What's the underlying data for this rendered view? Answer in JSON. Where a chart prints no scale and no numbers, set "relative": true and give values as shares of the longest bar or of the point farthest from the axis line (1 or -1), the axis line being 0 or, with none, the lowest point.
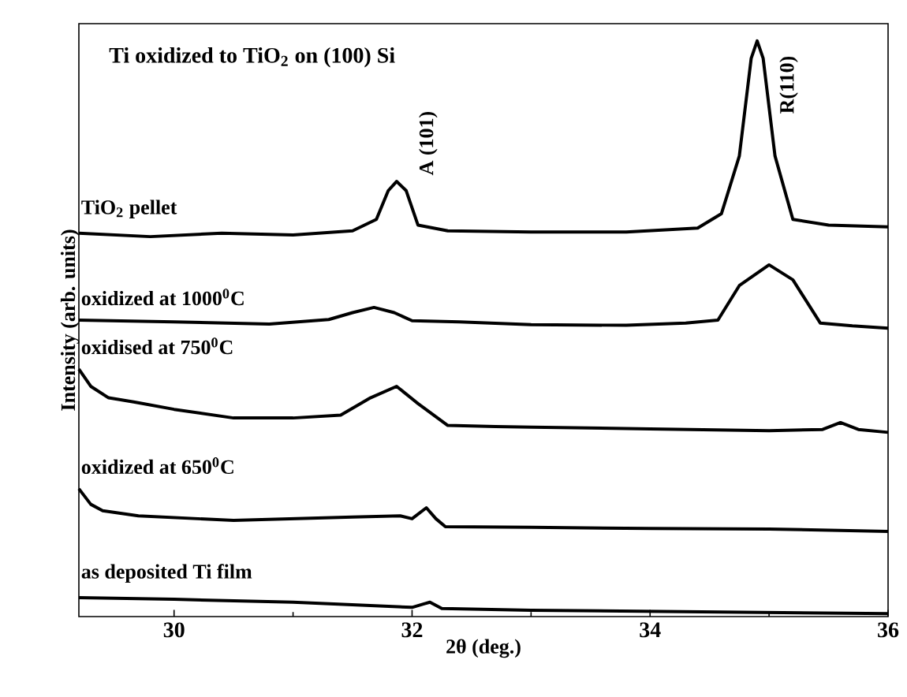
{
  "chart_data": {
    "type": "line",
    "relative": true,
    "title": "Ti oxidized to TiO$_{2}$ on (100) Si",
    "xlabel": "2θ (deg.)",
    "ylabel": "Intensity (arb. units)",
    "xlim": [
      29.2,
      36
    ],
    "xticks": [
      30,
      32,
      34,
      36
    ],
    "tick_labels": "x",
    "grid": false,
    "marker": "none",
    "line_style": "solid",
    "annotations": [
      {
        "text": "A (101)",
        "x": 31.87,
        "y": 0.756
      },
      {
        "text": "R(110)",
        "x": 34.9,
        "y": 1.0
      }
    ],
    "series": [
      {
        "name": "TiO$_{2}$ pellet",
        "color": "#000000",
        "x": [
          29.2,
          29.8,
          30.4,
          31.0,
          31.5,
          31.7,
          31.8,
          31.87,
          31.95,
          32.05,
          32.3,
          33.0,
          33.8,
          34.4,
          34.6,
          34.75,
          34.85,
          34.9,
          34.95,
          35.05,
          35.2,
          35.5,
          36.0
        ],
        "values": [
          0.666,
          0.66,
          0.666,
          0.663,
          0.67,
          0.69,
          0.74,
          0.756,
          0.74,
          0.68,
          0.67,
          0.668,
          0.668,
          0.675,
          0.7,
          0.8,
          0.97,
          1.0,
          0.97,
          0.8,
          0.69,
          0.68,
          0.677
        ]
      },
      {
        "name": "oxidized at 1000$^{0}$C",
        "color": "#000000",
        "x": [
          29.2,
          30.0,
          30.8,
          31.3,
          31.5,
          31.68,
          31.85,
          32.0,
          32.4,
          33.0,
          33.8,
          34.3,
          34.57,
          34.75,
          35.0,
          35.2,
          35.43,
          35.7,
          36.0
        ],
        "values": [
          0.515,
          0.512,
          0.508,
          0.516,
          0.528,
          0.537,
          0.528,
          0.514,
          0.512,
          0.507,
          0.506,
          0.51,
          0.515,
          0.575,
          0.611,
          0.585,
          0.51,
          0.505,
          0.501
        ]
      },
      {
        "name": "oxidised at 750$^{0}$C",
        "color": "#000000",
        "x": [
          29.2,
          29.3,
          29.45,
          29.66,
          30.0,
          30.5,
          31.0,
          31.4,
          31.65,
          31.87,
          32.05,
          32.3,
          32.7,
          33.0,
          34.0,
          35.0,
          35.45,
          35.6,
          35.75,
          36.0
        ],
        "values": [
          0.43,
          0.4,
          0.38,
          0.373,
          0.36,
          0.345,
          0.345,
          0.35,
          0.38,
          0.4,
          0.37,
          0.332,
          0.33,
          0.329,
          0.326,
          0.323,
          0.325,
          0.337,
          0.325,
          0.32
        ]
      },
      {
        "name": "oxidized at 650$^{0}$C",
        "color": "#000000",
        "x": [
          29.2,
          29.3,
          29.4,
          29.7,
          30.5,
          31.5,
          31.9,
          32.0,
          32.12,
          32.2,
          32.28,
          33.0,
          34.0,
          35.0,
          36.0
        ],
        "values": [
          0.222,
          0.195,
          0.184,
          0.175,
          0.167,
          0.173,
          0.175,
          0.17,
          0.189,
          0.17,
          0.156,
          0.155,
          0.153,
          0.152,
          0.148
        ]
      },
      {
        "name": "as deposited Ti film",
        "color": "#000000",
        "x": [
          29.2,
          30.0,
          31.0,
          32.0,
          32.1,
          32.15,
          32.25,
          33.0,
          34.0,
          35.0,
          36.0
        ],
        "values": [
          0.033,
          0.03,
          0.025,
          0.016,
          0.022,
          0.025,
          0.014,
          0.011,
          0.009,
          0.007,
          0.005
        ]
      }
    ]
  }
}
